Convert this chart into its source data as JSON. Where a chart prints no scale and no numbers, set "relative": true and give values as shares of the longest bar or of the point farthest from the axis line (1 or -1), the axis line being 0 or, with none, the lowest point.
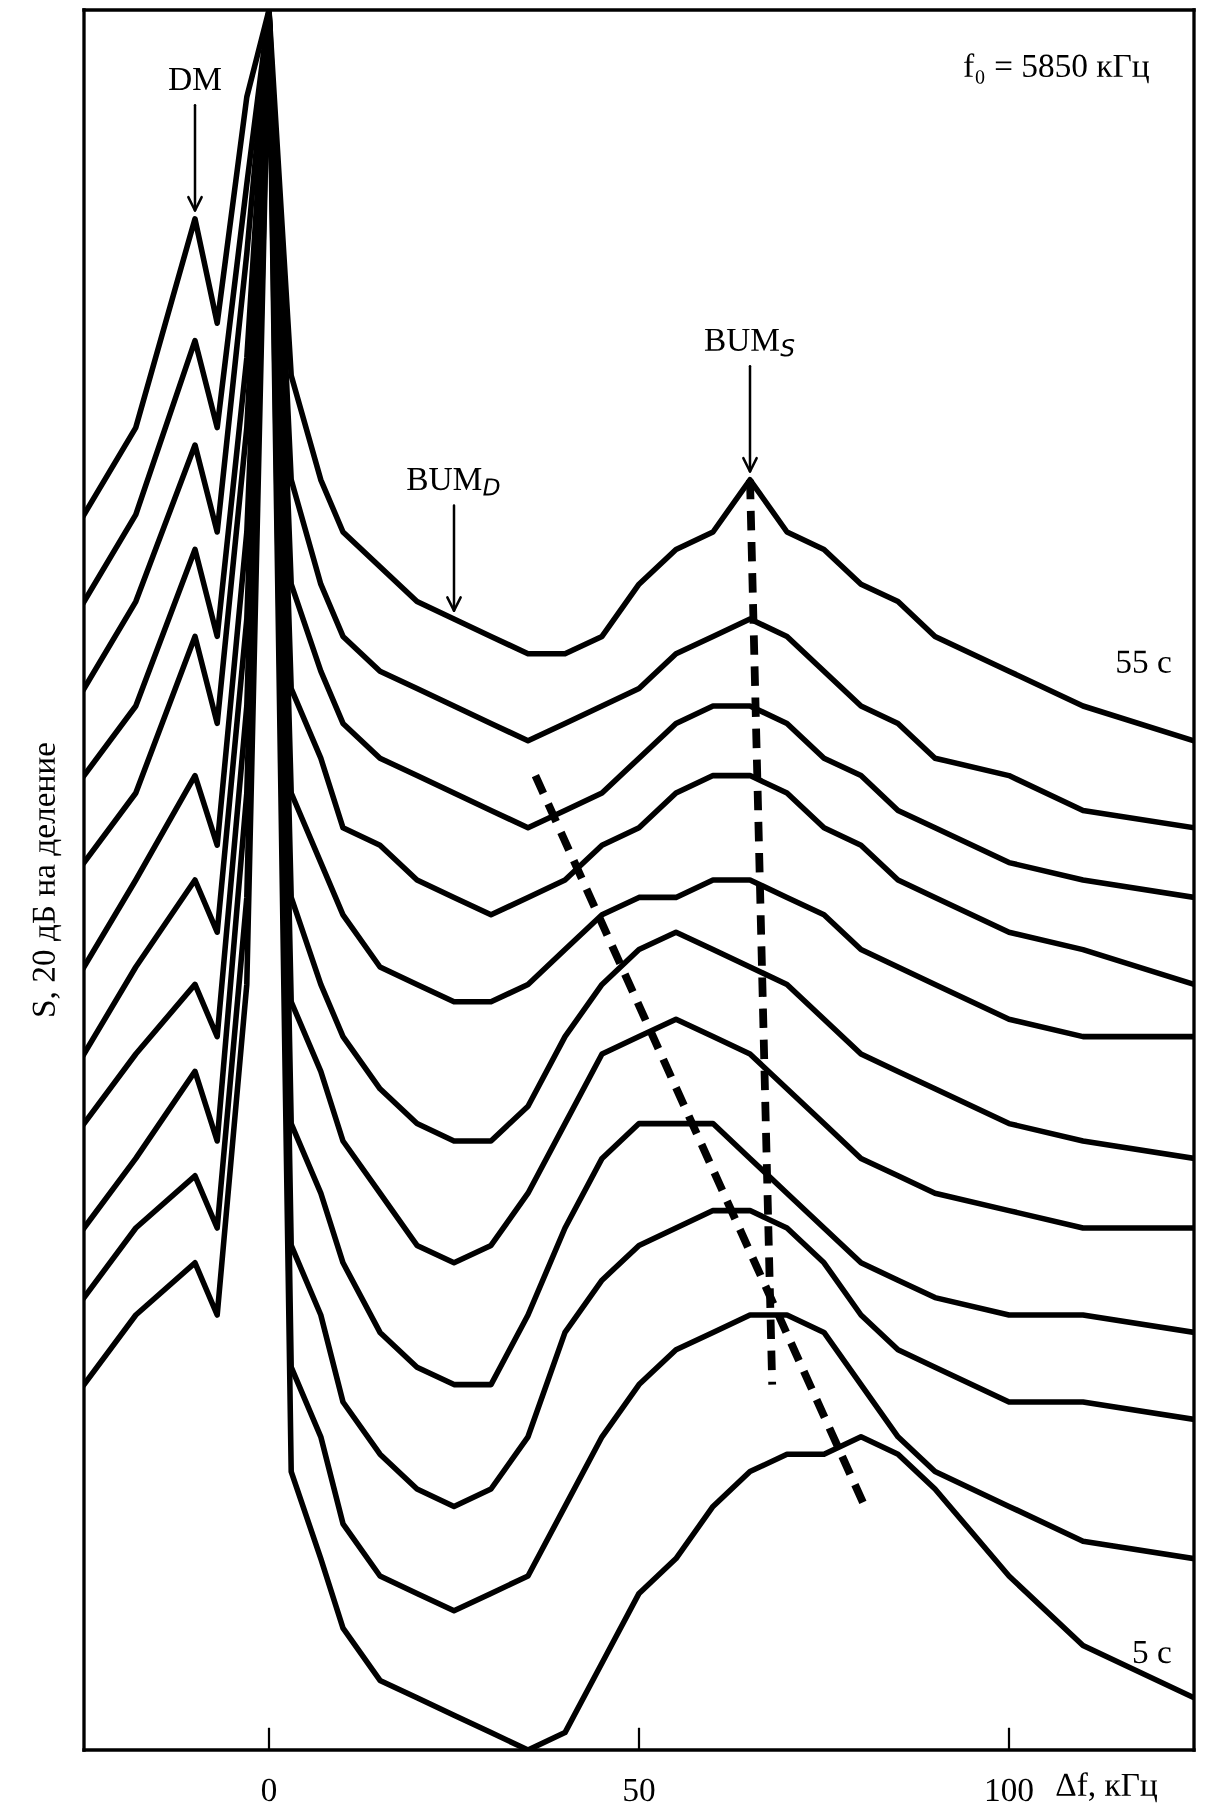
{
  "chart_data": {
    "type": "line",
    "relative": true,
    "xlabel": "Δf, кГц",
    "ylabel": "S, 20 дБ на деление",
    "x": [
      -25,
      -18,
      -10,
      -7,
      -3,
      0,
      3,
      7,
      10,
      15,
      20,
      25,
      30,
      35,
      40,
      45,
      50,
      55,
      60,
      65,
      70,
      75,
      80,
      85,
      90,
      100,
      110,
      125
    ],
    "xlim": [
      -25,
      125
    ],
    "xticks": [
      0,
      50,
      100
    ],
    "grid": false,
    "legend": false,
    "marker": "none",
    "line_style": "solid",
    "series": [
      {
        "name": "55 с",
        "color": "#000000",
        "values": [
          0.71,
          0.76,
          0.88,
          0.82,
          0.95,
          1,
          0.79,
          0.73,
          0.7,
          0.68,
          0.66,
          0.65,
          0.64,
          0.63,
          0.63,
          0.64,
          0.67,
          0.69,
          0.7,
          0.73,
          0.7,
          0.69,
          0.67,
          0.66,
          0.64,
          0.62,
          0.6,
          0.58
        ]
      },
      {
        "color": "#000000",
        "values": [
          0.66,
          0.71,
          0.81,
          0.76,
          0.9,
          1,
          0.73,
          0.67,
          0.64,
          0.62,
          0.61,
          0.6,
          0.59,
          0.58,
          0.59,
          0.6,
          0.61,
          0.63,
          0.64,
          0.65,
          0.64,
          0.62,
          0.6,
          0.59,
          0.57,
          0.56,
          0.54,
          0.53
        ]
      },
      {
        "color": "#000000",
        "values": [
          0.61,
          0.66,
          0.75,
          0.7,
          0.86,
          1,
          0.67,
          0.62,
          0.59,
          0.57,
          0.56,
          0.55,
          0.54,
          0.53,
          0.54,
          0.55,
          0.57,
          0.59,
          0.6,
          0.6,
          0.59,
          0.57,
          0.56,
          0.54,
          0.53,
          0.51,
          0.5,
          0.49
        ]
      },
      {
        "color": "#000000",
        "values": [
          0.56,
          0.6,
          0.69,
          0.64,
          0.8,
          1,
          0.61,
          0.57,
          0.53,
          0.52,
          0.5,
          0.49,
          0.48,
          0.49,
          0.5,
          0.52,
          0.53,
          0.55,
          0.56,
          0.56,
          0.55,
          0.53,
          0.52,
          0.5,
          0.49,
          0.47,
          0.46,
          0.44
        ]
      },
      {
        "color": "#000000",
        "values": [
          0.51,
          0.55,
          0.64,
          0.59,
          0.76,
          1,
          0.55,
          0.51,
          0.48,
          0.45,
          0.44,
          0.43,
          0.43,
          0.44,
          0.46,
          0.48,
          0.49,
          0.49,
          0.5,
          0.5,
          0.49,
          0.48,
          0.46,
          0.45,
          0.44,
          0.42,
          0.41,
          0.41
        ]
      },
      {
        "color": "#000000",
        "values": [
          0.45,
          0.5,
          0.56,
          0.52,
          0.7,
          1,
          0.49,
          0.44,
          0.41,
          0.38,
          0.36,
          0.35,
          0.35,
          0.37,
          0.41,
          0.44,
          0.46,
          0.47,
          0.46,
          0.45,
          0.44,
          0.42,
          0.4,
          0.39,
          0.38,
          0.36,
          0.35,
          0.34
        ]
      },
      {
        "color": "#000000",
        "values": [
          0.4,
          0.45,
          0.5,
          0.47,
          0.65,
          1,
          0.43,
          0.39,
          0.35,
          0.32,
          0.29,
          0.28,
          0.29,
          0.32,
          0.36,
          0.4,
          0.41,
          0.42,
          0.41,
          0.4,
          0.38,
          0.36,
          0.34,
          0.33,
          0.32,
          0.31,
          0.3,
          0.3
        ]
      },
      {
        "color": "#000000",
        "values": [
          0.36,
          0.4,
          0.44,
          0.41,
          0.6,
          1,
          0.36,
          0.32,
          0.28,
          0.24,
          0.22,
          0.21,
          0.21,
          0.25,
          0.3,
          0.34,
          0.36,
          0.36,
          0.36,
          0.34,
          0.32,
          0.3,
          0.28,
          0.27,
          0.26,
          0.25,
          0.25,
          0.24
        ]
      },
      {
        "color": "#000000",
        "values": [
          0.3,
          0.34,
          0.39,
          0.35,
          0.55,
          1,
          0.29,
          0.25,
          0.2,
          0.17,
          0.15,
          0.14,
          0.15,
          0.18,
          0.24,
          0.27,
          0.29,
          0.3,
          0.31,
          0.31,
          0.3,
          0.28,
          0.25,
          0.23,
          0.22,
          0.2,
          0.2,
          0.19
        ]
      },
      {
        "color": "#000000",
        "values": [
          0.26,
          0.3,
          0.33,
          0.3,
          0.49,
          1,
          0.22,
          0.18,
          0.13,
          0.1,
          0.09,
          0.08,
          0.09,
          0.1,
          0.14,
          0.18,
          0.21,
          0.23,
          0.24,
          0.25,
          0.25,
          0.24,
          0.21,
          0.18,
          0.16,
          0.14,
          0.12,
          0.11
        ]
      },
      {
        "name": "5 с",
        "color": "#000000",
        "values": [
          0.21,
          0.25,
          0.28,
          0.25,
          0.44,
          1,
          0.16,
          0.11,
          0.07,
          0.04,
          0.03,
          0.02,
          0.01,
          0.0,
          0.01,
          0.05,
          0.09,
          0.11,
          0.14,
          0.16,
          0.17,
          0.17,
          0.18,
          0.17,
          0.15,
          0.1,
          0.06,
          0.03
        ]
      },
      {
        "type": "line",
        "line_style": "dashed",
        "color": "#000000",
        "x": [
          65,
          68
        ],
        "values": [
          0.73,
          0.21
        ]
      },
      {
        "type": "line",
        "line_style": "dashed",
        "color": "#000000",
        "x": [
          36,
          80.5
        ],
        "values": [
          0.56,
          0.14
        ]
      }
    ],
    "annotations": [
      {
        "text": "DM",
        "x": -10,
        "y": 0.88
      },
      {
        "text": "BUM$_{D}$",
        "x": 25,
        "y": 0.65
      },
      {
        "text": "BUM$_{S}$",
        "x": 65,
        "y": 0.73
      },
      "f₀ = 5850 кГц"
    ]
  }
}
